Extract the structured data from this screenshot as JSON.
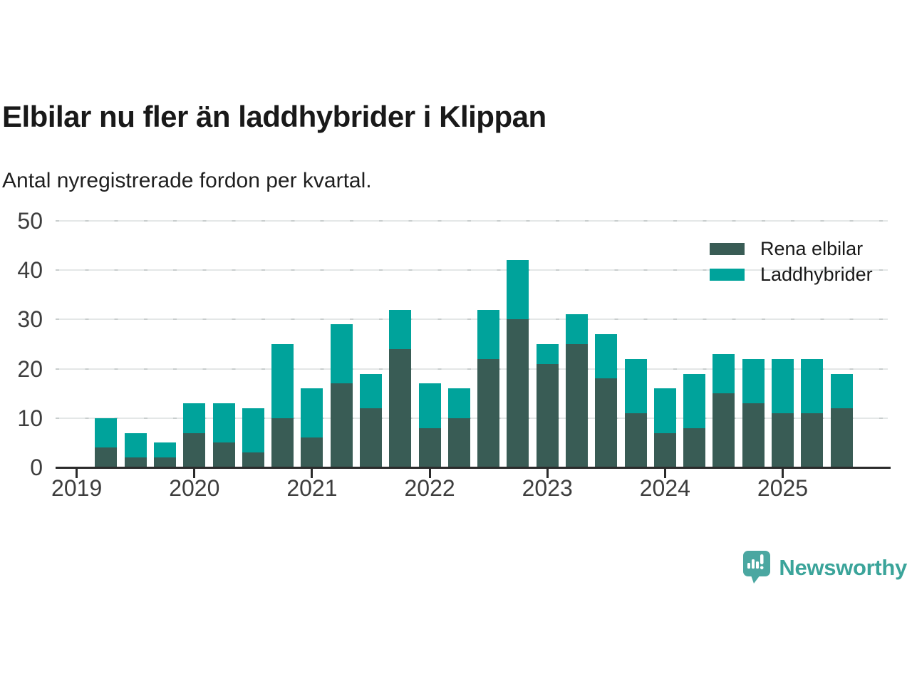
{
  "header": {
    "title": "Elbilar nu fler än laddhybrider i Klippan",
    "subtitle": "Antal nyregistrerade fordon per kvartal."
  },
  "legend": {
    "items": [
      {
        "label": "Rena elbilar",
        "color": "#395c55"
      },
      {
        "label": "Laddhybrider",
        "color": "#00a39b"
      }
    ]
  },
  "chart_data": {
    "type": "bar",
    "stacked": true,
    "title": "Elbilar nu fler än laddhybrider i Klippan",
    "subtitle": "Antal nyregistrerade fordon per kvartal.",
    "x_unit": "quarter",
    "x_axis_start": "2019 Q1",
    "x_axis_end": "2025 Q4",
    "categories": [
      "2019 Q2",
      "2019 Q3",
      "2019 Q4",
      "2020 Q1",
      "2020 Q2",
      "2020 Q3",
      "2020 Q4",
      "2021 Q1",
      "2021 Q2",
      "2021 Q3",
      "2021 Q4",
      "2022 Q1",
      "2022 Q2",
      "2022 Q3",
      "2022 Q4",
      "2023 Q1",
      "2023 Q2",
      "2023 Q3",
      "2023 Q4",
      "2024 Q1",
      "2024 Q2",
      "2024 Q3",
      "2024 Q4",
      "2025 Q1",
      "2025 Q2",
      "2025 Q3"
    ],
    "series": [
      {
        "name": "Rena elbilar",
        "color": "#395c55",
        "values": [
          4,
          2,
          2,
          7,
          5,
          3,
          10,
          6,
          17,
          12,
          24,
          8,
          10,
          22,
          30,
          21,
          25,
          18,
          11,
          7,
          8,
          15,
          13,
          11,
          11,
          12
        ]
      },
      {
        "name": "Laddhybrider",
        "color": "#00a39b",
        "values": [
          6,
          5,
          3,
          6,
          8,
          9,
          15,
          10,
          12,
          7,
          8,
          9,
          6,
          10,
          12,
          4,
          6,
          9,
          11,
          9,
          11,
          8,
          9,
          11,
          11,
          7
        ]
      }
    ],
    "totals": [
      10,
      7,
      5,
      13,
      13,
      12,
      25,
      16,
      29,
      19,
      32,
      17,
      16,
      32,
      42,
      25,
      31,
      27,
      22,
      16,
      19,
      23,
      22,
      22,
      22,
      19
    ],
    "ylim": [
      0,
      50
    ],
    "yticks": [
      0,
      10,
      20,
      30,
      40,
      50
    ],
    "x_tick_years": [
      "2019",
      "2020",
      "2021",
      "2022",
      "2023",
      "2024",
      "2025"
    ],
    "grid": "horizontal",
    "legend_position": "top-right"
  },
  "branding": {
    "wordmark": "Newsworthy",
    "logo_icon": "bar-chart-speech-bubble",
    "icon_color": "#4ba7a1",
    "text_color": "#3ba49a"
  }
}
